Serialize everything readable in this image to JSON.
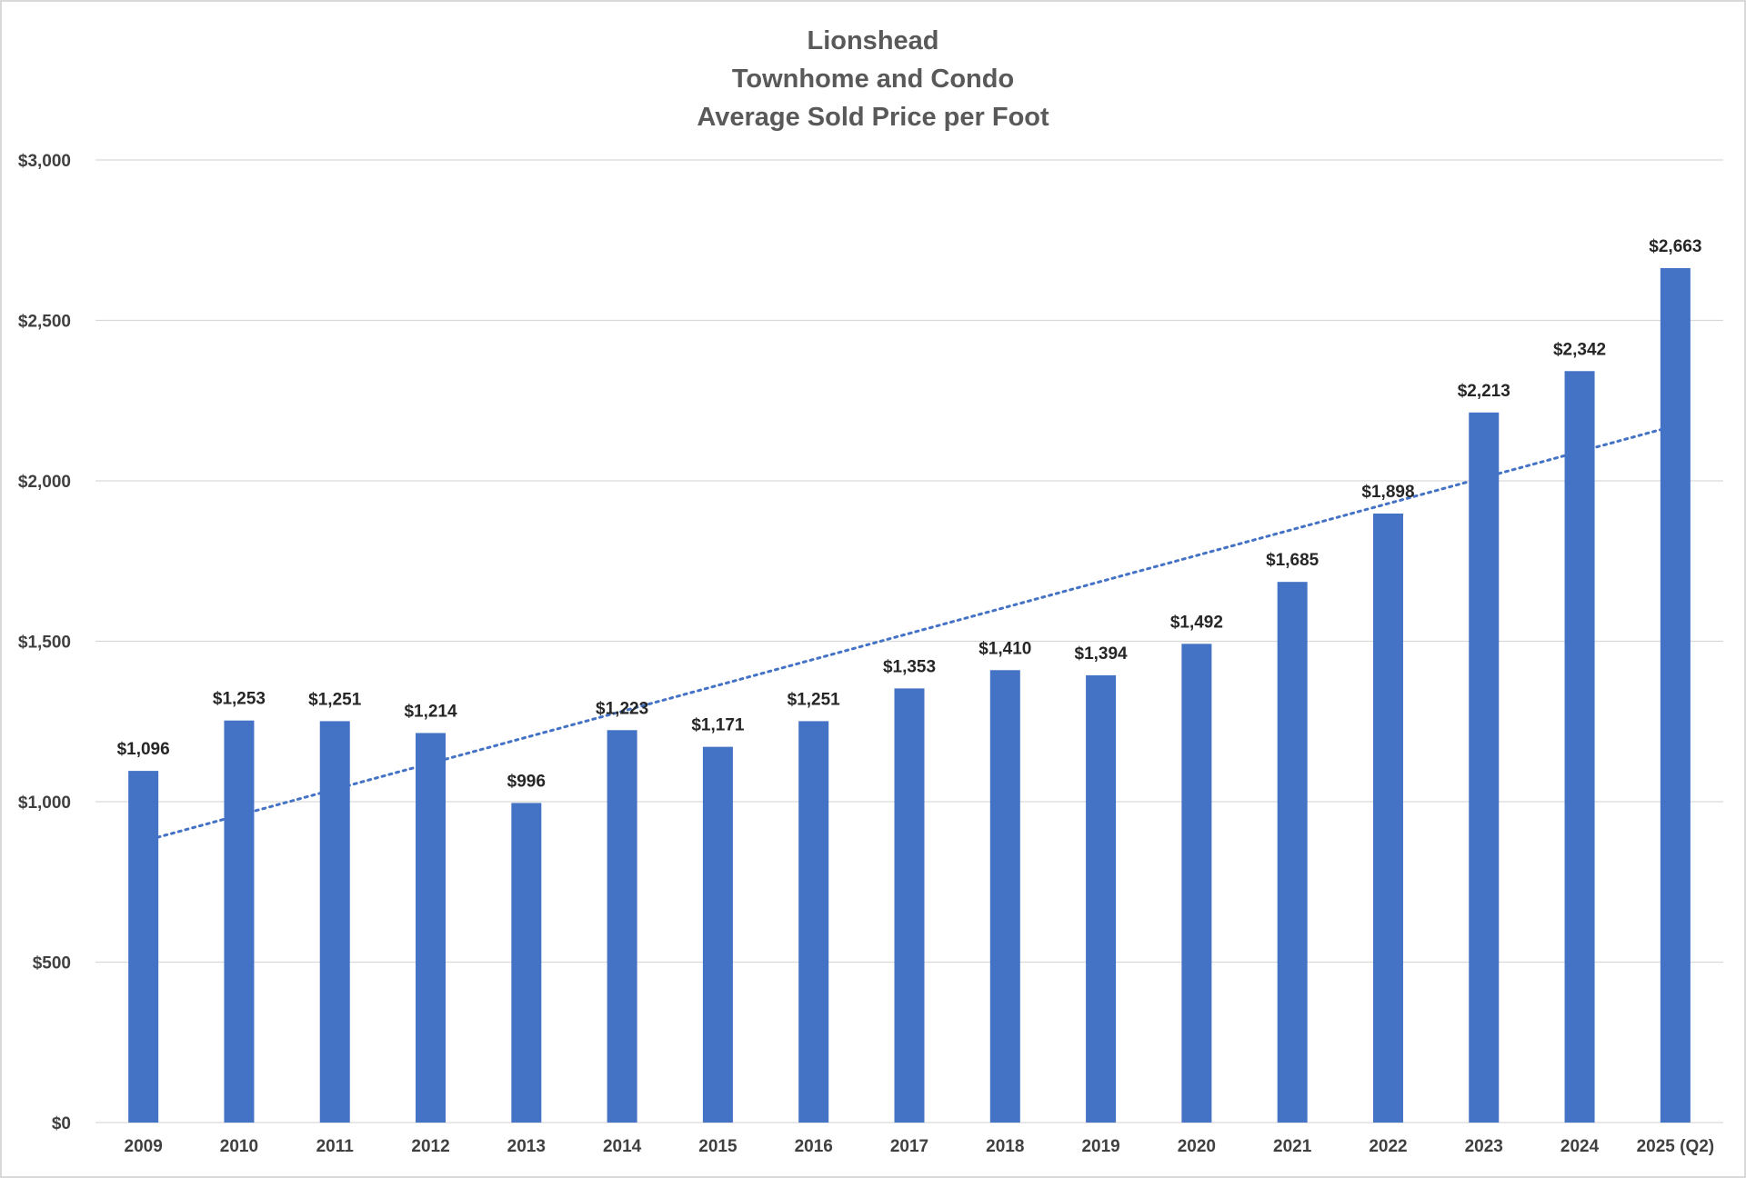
{
  "chart_data": {
    "type": "bar",
    "title_lines": [
      "Lionshead",
      "Townhome and Condo",
      "Average Sold Price per Foot"
    ],
    "categories": [
      "2009",
      "2010",
      "2011",
      "2012",
      "2013",
      "2014",
      "2015",
      "2016",
      "2017",
      "2018",
      "2019",
      "2020",
      "2021",
      "2022",
      "2023",
      "2024",
      "2025 (Q2)"
    ],
    "values": [
      1096,
      1253,
      1251,
      1214,
      996,
      1223,
      1171,
      1251,
      1353,
      1410,
      1394,
      1492,
      1685,
      1898,
      2213,
      2342,
      2663
    ],
    "data_labels": [
      "$1,096",
      "$1,253",
      "$1,251",
      "$1,214",
      "$996",
      "$1,223",
      "$1,171",
      "$1,251",
      "$1,353",
      "$1,410",
      "$1,394",
      "$1,492",
      "$1,685",
      "$1,898",
      "$2,213",
      "$2,342",
      "$2,663"
    ],
    "y_ticks": [
      0,
      500,
      1000,
      1500,
      2000,
      2500,
      3000
    ],
    "y_tick_labels": [
      "$0",
      "$500",
      "$1,000",
      "$1,500",
      "$2,000",
      "$2,500",
      "$3,000"
    ],
    "ylim": [
      0,
      3000
    ],
    "grid": true,
    "legend": "none",
    "trendline": {
      "type": "linear",
      "style": "dotted",
      "start_value": 877,
      "end_value": 2172
    },
    "colors": {
      "bar": "#4472c4",
      "trendline": "#4472c4",
      "grid": "#d9d9d9",
      "text": "#404040"
    }
  }
}
